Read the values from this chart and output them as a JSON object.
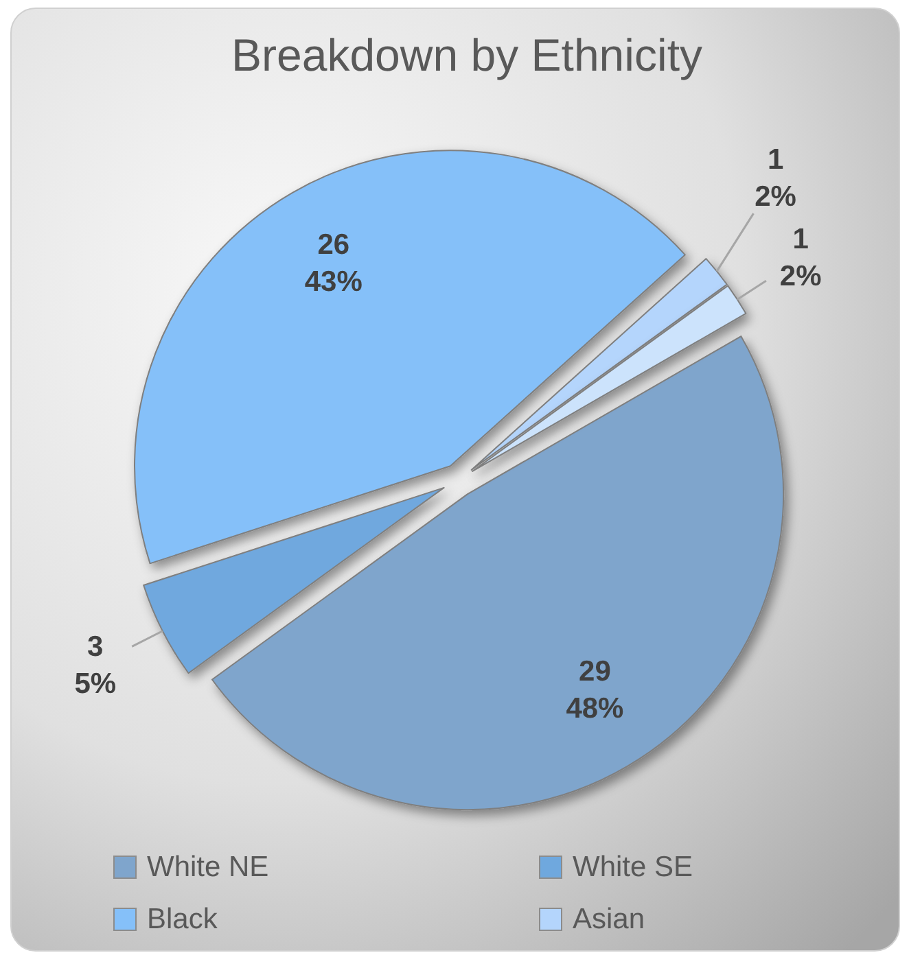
{
  "chart_data": {
    "type": "pie",
    "title": "Breakdown by Ethnicity",
    "categories": [
      "White NE",
      "White SE",
      "Black",
      "Asian",
      null
    ],
    "values": [
      29,
      3,
      26,
      1,
      1
    ],
    "colors": [
      "#7fa5cc",
      "#6fa8de",
      "#85c0f9",
      "#b4d5fc",
      "#cce3fc"
    ],
    "value_labels": [
      "29\n48%",
      "3\n5%",
      "26\n43%",
      "1\n2%",
      "1\n2%"
    ],
    "legend": "bottom"
  }
}
